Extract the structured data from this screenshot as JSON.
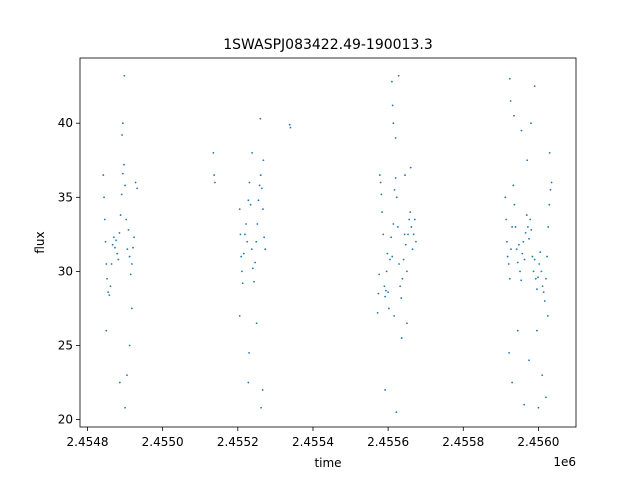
{
  "chart_data": {
    "type": "scatter",
    "title": "1SWASPJ083422.49-190013.3",
    "xlabel": "time",
    "ylabel": "flux",
    "x_offset_label": "1e6",
    "x_scale": 1000000,
    "xlim": [
      2454780,
      2456100
    ],
    "ylim": [
      19.5,
      44.4
    ],
    "xticks": [
      2454800,
      2455000,
      2455200,
      2455400,
      2455600,
      2455800,
      2456000
    ],
    "xtick_labels": [
      "2.4548",
      "2.4550",
      "2.4552",
      "2.4554",
      "2.4556",
      "2.4558",
      "2.4560"
    ],
    "yticks": [
      20,
      25,
      30,
      35,
      40
    ],
    "ytick_labels": [
      "20",
      "25",
      "30",
      "35",
      "40"
    ],
    "grid": false,
    "marker_color": "#1f77b4",
    "series": [
      {
        "values": [
          [
            2454842,
            36.5
          ],
          [
            2454844,
            35.0
          ],
          [
            2454846,
            33.5
          ],
          [
            2454848,
            32.0
          ],
          [
            2454850,
            30.5
          ],
          [
            2454852,
            29.5
          ],
          [
            2454855,
            28.6
          ],
          [
            2454858,
            28.4
          ],
          [
            2454861,
            29.0
          ],
          [
            2454864,
            30.5
          ],
          [
            2454867,
            31.8
          ],
          [
            2454870,
            32.3
          ],
          [
            2454873,
            31.6
          ],
          [
            2454876,
            32.1
          ],
          [
            2454879,
            31.2
          ],
          [
            2454882,
            30.8
          ],
          [
            2454885,
            32.6
          ],
          [
            2454888,
            33.8
          ],
          [
            2454891,
            35.2
          ],
          [
            2454894,
            36.6
          ],
          [
            2454897,
            37.2
          ],
          [
            2454900,
            35.8
          ],
          [
            2454903,
            33.5
          ],
          [
            2454906,
            31.5
          ],
          [
            2454909,
            32.8
          ],
          [
            2454912,
            31.0
          ],
          [
            2454915,
            29.8
          ],
          [
            2454918,
            30.5
          ],
          [
            2454921,
            31.6
          ],
          [
            2454924,
            32.3
          ],
          [
            2454928,
            36.0
          ],
          [
            2454932,
            35.6
          ],
          [
            2454850,
            26.0
          ],
          [
            2454886,
            22.5
          ],
          [
            2454894,
            40.0
          ],
          [
            2454898,
            43.2
          ],
          [
            2454900,
            20.8
          ],
          [
            2454905,
            23.0
          ],
          [
            2454912,
            25.0
          ],
          [
            2454918,
            27.5
          ],
          [
            2454892,
            39.2
          ],
          [
            2455135,
            38.0
          ],
          [
            2455137,
            36.5
          ],
          [
            2455139,
            36.0
          ],
          [
            2455205,
            34.2
          ],
          [
            2455207,
            32.5
          ],
          [
            2455209,
            31.0
          ],
          [
            2455211,
            30.0
          ],
          [
            2455213,
            29.2
          ],
          [
            2455216,
            31.2
          ],
          [
            2455219,
            32.5
          ],
          [
            2455222,
            33.2
          ],
          [
            2455225,
            32.0
          ],
          [
            2455228,
            34.8
          ],
          [
            2455231,
            36.0
          ],
          [
            2455234,
            34.5
          ],
          [
            2455237,
            31.5
          ],
          [
            2455240,
            30.2
          ],
          [
            2455243,
            29.3
          ],
          [
            2455246,
            30.6
          ],
          [
            2455249,
            32.0
          ],
          [
            2455252,
            33.2
          ],
          [
            2455255,
            34.8
          ],
          [
            2455258,
            35.8
          ],
          [
            2455261,
            36.5
          ],
          [
            2455264,
            35.6
          ],
          [
            2455267,
            34.2
          ],
          [
            2455270,
            32.3
          ],
          [
            2455273,
            31.5
          ],
          [
            2455228,
            22.5
          ],
          [
            2455230,
            24.5
          ],
          [
            2455238,
            38.0
          ],
          [
            2455250,
            26.5
          ],
          [
            2455260,
            40.3
          ],
          [
            2455262,
            20.8
          ],
          [
            2455266,
            22.0
          ],
          [
            2455268,
            37.5
          ],
          [
            2455205,
            27.0
          ],
          [
            2455338,
            39.9
          ],
          [
            2455340,
            39.7
          ],
          [
            2455572,
            27.2
          ],
          [
            2455574,
            28.5
          ],
          [
            2455576,
            29.8
          ],
          [
            2455578,
            36.5
          ],
          [
            2455580,
            36.0
          ],
          [
            2455582,
            35.2
          ],
          [
            2455584,
            34.0
          ],
          [
            2455587,
            32.5
          ],
          [
            2455590,
            29.0
          ],
          [
            2455592,
            28.3
          ],
          [
            2455594,
            28.7
          ],
          [
            2455596,
            30.0
          ],
          [
            2455598,
            31.2
          ],
          [
            2455600,
            28.6
          ],
          [
            2455602,
            27.5
          ],
          [
            2455605,
            30.8
          ],
          [
            2455608,
            32.3
          ],
          [
            2455611,
            31.0
          ],
          [
            2455614,
            33.2
          ],
          [
            2455617,
            35.5
          ],
          [
            2455620,
            36.3
          ],
          [
            2455623,
            35.0
          ],
          [
            2455626,
            33.0
          ],
          [
            2455629,
            30.5
          ],
          [
            2455632,
            29.0
          ],
          [
            2455635,
            28.2
          ],
          [
            2455638,
            29.5
          ],
          [
            2455641,
            30.8
          ],
          [
            2455644,
            32.5
          ],
          [
            2455647,
            31.8
          ],
          [
            2455650,
            30.0
          ],
          [
            2455653,
            32.5
          ],
          [
            2455656,
            33.5
          ],
          [
            2455659,
            34.0
          ],
          [
            2455662,
            33.0
          ],
          [
            2455665,
            31.5
          ],
          [
            2455668,
            32.5
          ],
          [
            2455671,
            33.5
          ],
          [
            2455674,
            32.0
          ],
          [
            2455592,
            22.0
          ],
          [
            2455610,
            42.8
          ],
          [
            2455612,
            41.2
          ],
          [
            2455614,
            40.0
          ],
          [
            2455616,
            27.0
          ],
          [
            2455620,
            39.0
          ],
          [
            2455622,
            20.5
          ],
          [
            2455628,
            43.2
          ],
          [
            2455636,
            25.5
          ],
          [
            2455645,
            36.5
          ],
          [
            2455650,
            26.5
          ],
          [
            2455660,
            37.0
          ],
          [
            2455912,
            35.0
          ],
          [
            2455914,
            33.5
          ],
          [
            2455916,
            32.0
          ],
          [
            2455918,
            31.0
          ],
          [
            2455921,
            30.5
          ],
          [
            2455924,
            29.5
          ],
          [
            2455927,
            31.5
          ],
          [
            2455930,
            33.0
          ],
          [
            2455933,
            35.8
          ],
          [
            2455936,
            34.5
          ],
          [
            2455939,
            33.0
          ],
          [
            2455942,
            31.5
          ],
          [
            2455945,
            30.6
          ],
          [
            2455948,
            31.8
          ],
          [
            2455951,
            30.0
          ],
          [
            2455954,
            29.4
          ],
          [
            2455957,
            31.2
          ],
          [
            2455960,
            32.0
          ],
          [
            2455963,
            30.8
          ],
          [
            2455966,
            32.6
          ],
          [
            2455969,
            33.8
          ],
          [
            2455972,
            33.0
          ],
          [
            2455975,
            32.2
          ],
          [
            2455978,
            33.5
          ],
          [
            2455981,
            32.8
          ],
          [
            2455984,
            31.0
          ],
          [
            2455987,
            30.0
          ],
          [
            2455990,
            30.8
          ],
          [
            2455993,
            29.5
          ],
          [
            2455996,
            28.8
          ],
          [
            2455999,
            29.6
          ],
          [
            2456002,
            30.5
          ],
          [
            2456005,
            31.3
          ],
          [
            2456008,
            30.0
          ],
          [
            2456011,
            29.0
          ],
          [
            2456014,
            28.6
          ],
          [
            2456017,
            28.0
          ],
          [
            2456020,
            29.5
          ],
          [
            2456023,
            31.0
          ],
          [
            2456026,
            33.0
          ],
          [
            2456029,
            34.5
          ],
          [
            2456032,
            35.5
          ],
          [
            2456035,
            36.0
          ],
          [
            2455922,
            24.5
          ],
          [
            2455924,
            43.0
          ],
          [
            2455926,
            41.5
          ],
          [
            2455930,
            22.5
          ],
          [
            2455935,
            40.5
          ],
          [
            2455945,
            26.0
          ],
          [
            2455955,
            39.5
          ],
          [
            2455962,
            21.0
          ],
          [
            2455970,
            37.5
          ],
          [
            2455975,
            24.0
          ],
          [
            2455980,
            40.0
          ],
          [
            2455990,
            42.5
          ],
          [
            2455996,
            26.0
          ],
          [
            2456000,
            20.8
          ],
          [
            2456010,
            23.0
          ],
          [
            2456020,
            21.5
          ],
          [
            2456025,
            27.0
          ],
          [
            2456030,
            38.0
          ]
        ]
      }
    ]
  }
}
